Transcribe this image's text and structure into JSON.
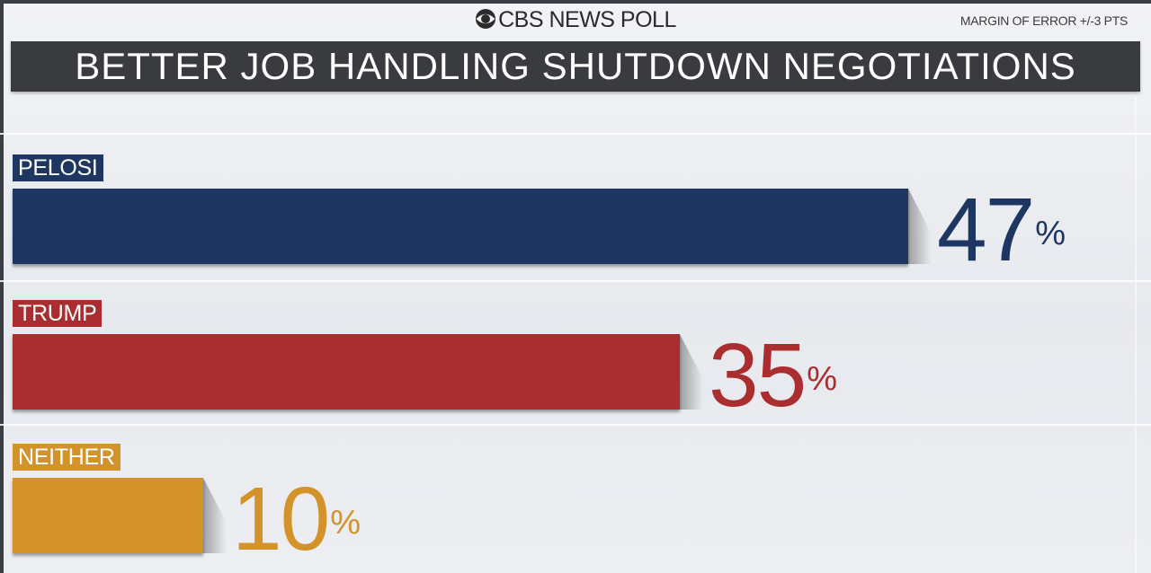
{
  "header": {
    "brand": "CBS NEWS POLL",
    "margin_of_error": "MARGIN OF ERROR +/-3 PTS",
    "title": "BETTER JOB HANDLING SHUTDOWN NEGOTIATIONS",
    "brand_icon": "cbs-eye-logo"
  },
  "colors": {
    "pelosi": "#1e3762",
    "trump": "#aa2e30",
    "neither": "#d3922a",
    "title_bar": "#3a3b3f"
  },
  "chart_data": {
    "type": "bar",
    "orientation": "horizontal",
    "title": "BETTER JOB HANDLING SHUTDOWN NEGOTIATIONS",
    "categories": [
      "PELOSI",
      "TRUMP",
      "NEITHER"
    ],
    "values": [
      47,
      35,
      10
    ],
    "value_labels": [
      "47",
      "35",
      "10"
    ],
    "value_suffix": "%",
    "colors": [
      "#1e3762",
      "#aa2e30",
      "#d3922a"
    ],
    "xlim": [
      0,
      100
    ],
    "grid": true,
    "legend": "none"
  }
}
